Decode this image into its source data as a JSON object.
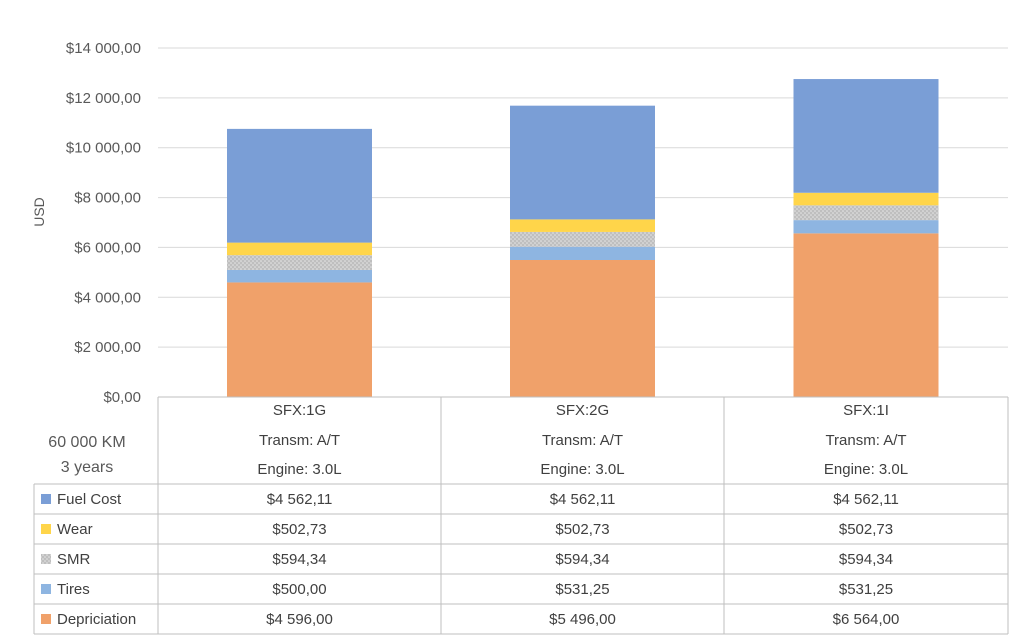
{
  "chart_data": {
    "type": "bar",
    "stacked": true,
    "ylabel": "USD",
    "ylim": [
      0,
      14000
    ],
    "yticks": [
      "$0,00",
      "$2 000,00",
      "$4 000,00",
      "$6 000,00",
      "$8 000,00",
      "$10 000,00",
      "$12 000,00",
      "$14 000,00"
    ],
    "grid": true,
    "categories": [
      {
        "name": "SFX:1G",
        "transmission": "Transm: A/T",
        "engine": "Engine: 3.0L"
      },
      {
        "name": "SFX:2G",
        "transmission": "Transm: A/T",
        "engine": "Engine: 3.0L"
      },
      {
        "name": "SFX:1I",
        "transmission": "Transm: A/T",
        "engine": "Engine: 3.0L"
      }
    ],
    "info_label_1": "60 000 KM",
    "info_label_2": "3 years",
    "series_bottom_to_top": [
      {
        "name": "Depriciation",
        "color": "#F0A16A",
        "values": [
          4596.0,
          5496.0,
          6564.0
        ],
        "labels": [
          "$4 596,00",
          "$5 496,00",
          "$6 564,00"
        ]
      },
      {
        "name": "Tires",
        "color": "#8EB5E1",
        "values": [
          500.0,
          531.25,
          531.25
        ],
        "labels": [
          "$500,00",
          "$531,25",
          "$531,25"
        ]
      },
      {
        "name": "SMR",
        "color": "#BFBFBF",
        "pattern": "dotted",
        "values": [
          594.34,
          594.34,
          594.34
        ],
        "labels": [
          "$594,34",
          "$594,34",
          "$594,34"
        ]
      },
      {
        "name": "Wear",
        "color": "#FFD54A",
        "values": [
          502.73,
          502.73,
          502.73
        ],
        "labels": [
          "$502,73",
          "$502,73",
          "$502,73"
        ]
      },
      {
        "name": "Fuel Cost",
        "color": "#7A9ED6",
        "values": [
          4562.11,
          4562.11,
          4562.11
        ],
        "labels": [
          "$4 562,11",
          "$4 562,11",
          "$4 562,11"
        ]
      }
    ],
    "table_row_order": [
      "Fuel Cost",
      "Wear",
      "SMR",
      "Tires",
      "Depriciation"
    ]
  }
}
